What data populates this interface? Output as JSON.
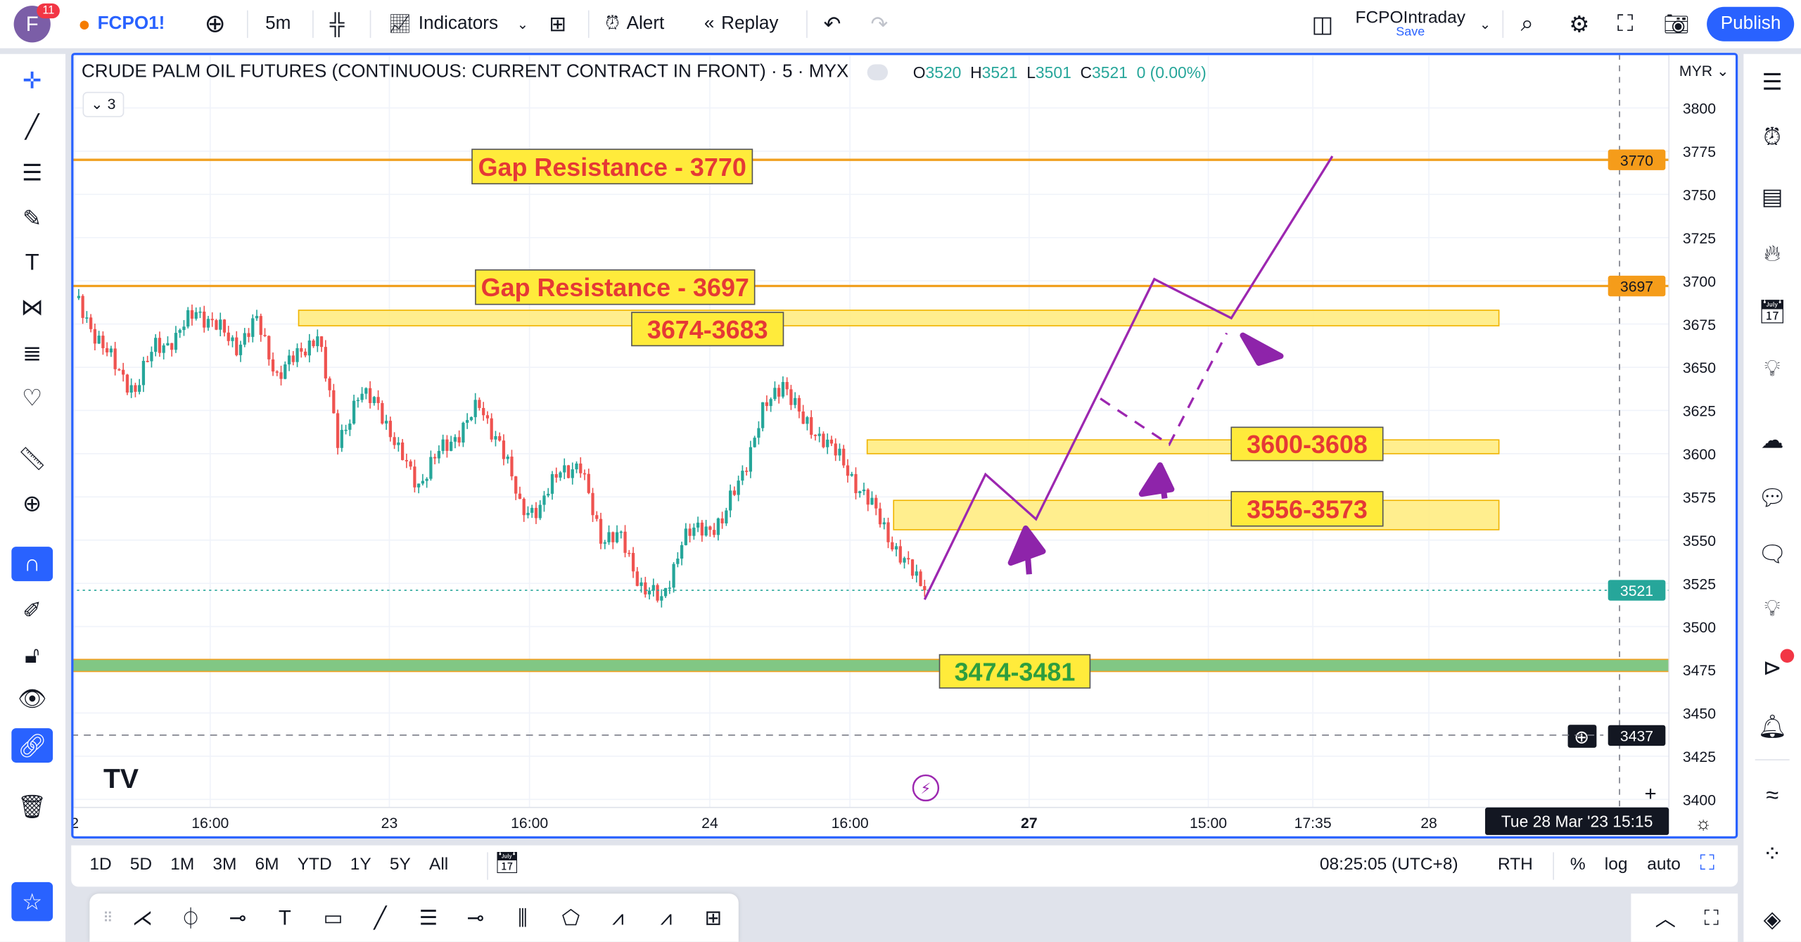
{
  "topbar": {
    "avatar_letter": "F",
    "notifications": "11",
    "symbol": "FCPO1!",
    "interval": "5m",
    "indicators": "Indicators",
    "alert": "Alert",
    "replay": "Replay",
    "layout_name": "FCPOIntraday",
    "layout_save": "Save",
    "publish": "Publish"
  },
  "legend": {
    "title": "CRUDE PALM OIL FUTURES (CONTINUOUS: CURRENT CONTRACT IN FRONT) · 5 · MYX",
    "o_label": "O",
    "o": "3520",
    "h_label": "H",
    "h": "3521",
    "l_label": "L",
    "l": "3501",
    "c_label": "C",
    "c": "3521",
    "change": "0 (0.00%)",
    "collapse": "3"
  },
  "colors": {
    "accent": "#2962ff",
    "up": "#26a69a",
    "down": "#ef5350",
    "resistance": "#f0a020",
    "zone": "#ffeb7a",
    "support_zone": "#81c784",
    "projection": "#9c27b0"
  },
  "price_axis": {
    "currency": "MYR",
    "ticks": [
      "3800",
      "3775",
      "3750",
      "3725",
      "3700",
      "3675",
      "3650",
      "3625",
      "3600",
      "3575",
      "3550",
      "3525",
      "3500",
      "3475",
      "3450",
      "3425",
      "3400"
    ],
    "badges": [
      {
        "label": "3770",
        "price": 3770,
        "color": "#f59c1a"
      },
      {
        "label": "3697",
        "price": 3697,
        "color": "#f59c1a"
      },
      {
        "label": "3521",
        "price": 3521,
        "color": "#26a69a"
      },
      {
        "label": "3437",
        "price": 3437,
        "color": "#131722"
      }
    ]
  },
  "time_axis": {
    "ticks": [
      "2",
      "16:00",
      "23",
      "16:00",
      "24",
      "16:00",
      "27",
      "15:00",
      "17:35",
      "28"
    ],
    "cursor_label": "Tue 28 Mar '23  15:15"
  },
  "annotations": {
    "lines": [
      {
        "label": "Gap Resistance - 3770",
        "price": 3770
      },
      {
        "label": "Gap Resistance - 3697",
        "price": 3697
      }
    ],
    "zones": [
      {
        "label": "3674-3683",
        "low": 3674,
        "high": 3683
      },
      {
        "label": "3600-3608",
        "low": 3600,
        "high": 3608
      },
      {
        "label": "3556-3573",
        "low": 3556,
        "high": 3573
      },
      {
        "label": "3474-3481",
        "low": 3474,
        "high": 3481
      }
    ]
  },
  "chart_data": {
    "type": "candlestick",
    "symbol": "FCPO1!",
    "interval": "5m",
    "ylim": [
      3400,
      3800
    ],
    "last_price": 3521,
    "crosshair_price": 3437,
    "closes": [
      3690,
      3670,
      3650,
      3637,
      3663,
      3666,
      3684,
      3673,
      3663,
      3676,
      3646,
      3656,
      3670,
      3607,
      3633,
      3630,
      3600,
      3583,
      3600,
      3613,
      3627,
      3607,
      3570,
      3567,
      3593,
      3590,
      3553,
      3550,
      3524,
      3514,
      3550,
      3557,
      3560,
      3590,
      3623,
      3643,
      3617,
      3610,
      3593,
      3577,
      3557,
      3537,
      3521
    ]
  },
  "bottombar": {
    "ranges": [
      "1D",
      "5D",
      "1M",
      "3M",
      "6M",
      "YTD",
      "1Y",
      "5Y",
      "All"
    ],
    "clock": "08:25:05 (UTC+8)",
    "session": "RTH",
    "percent": "%",
    "log": "log",
    "auto": "auto"
  }
}
